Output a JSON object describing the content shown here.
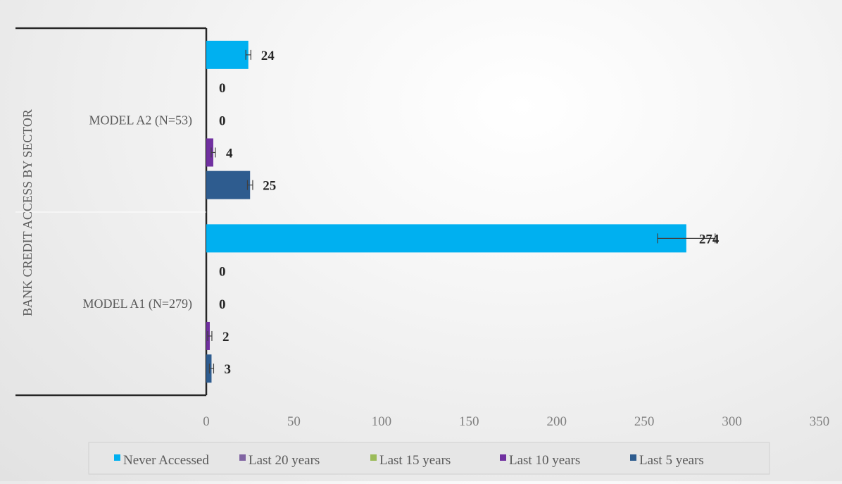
{
  "chart_data": {
    "type": "bar",
    "orientation": "horizontal",
    "ylabel": "BANK CREDIT ACCESS BY SECTOR",
    "xlabel": "",
    "xlim": [
      0,
      350
    ],
    "x_ticks": [
      0,
      50,
      100,
      150,
      200,
      250,
      300,
      350
    ],
    "grid": false,
    "legend_position": "bottom",
    "categories": [
      "MODEL A1 (N=279)",
      "MODEL A2 (N=53)"
    ],
    "series": [
      {
        "name": "Last 5 years",
        "color": "#2e5c8f",
        "values": [
          3,
          25
        ]
      },
      {
        "name": "Last 10 years",
        "color": "#7030a0",
        "values": [
          2,
          4
        ]
      },
      {
        "name": "Last 15 years",
        "color": "#9bbb59",
        "values": [
          0,
          0
        ]
      },
      {
        "name": "Last 20 years",
        "color": "#8064a2",
        "values": [
          0,
          0
        ]
      },
      {
        "name": "Never Accessed",
        "color": "#00b0f0",
        "values": [
          274,
          24
        ]
      }
    ],
    "legend_order": [
      "Never Accessed",
      "Last 20 years",
      "Last 15 years",
      "Last 10 years",
      "Last 5 years"
    ],
    "error_bars": true
  }
}
